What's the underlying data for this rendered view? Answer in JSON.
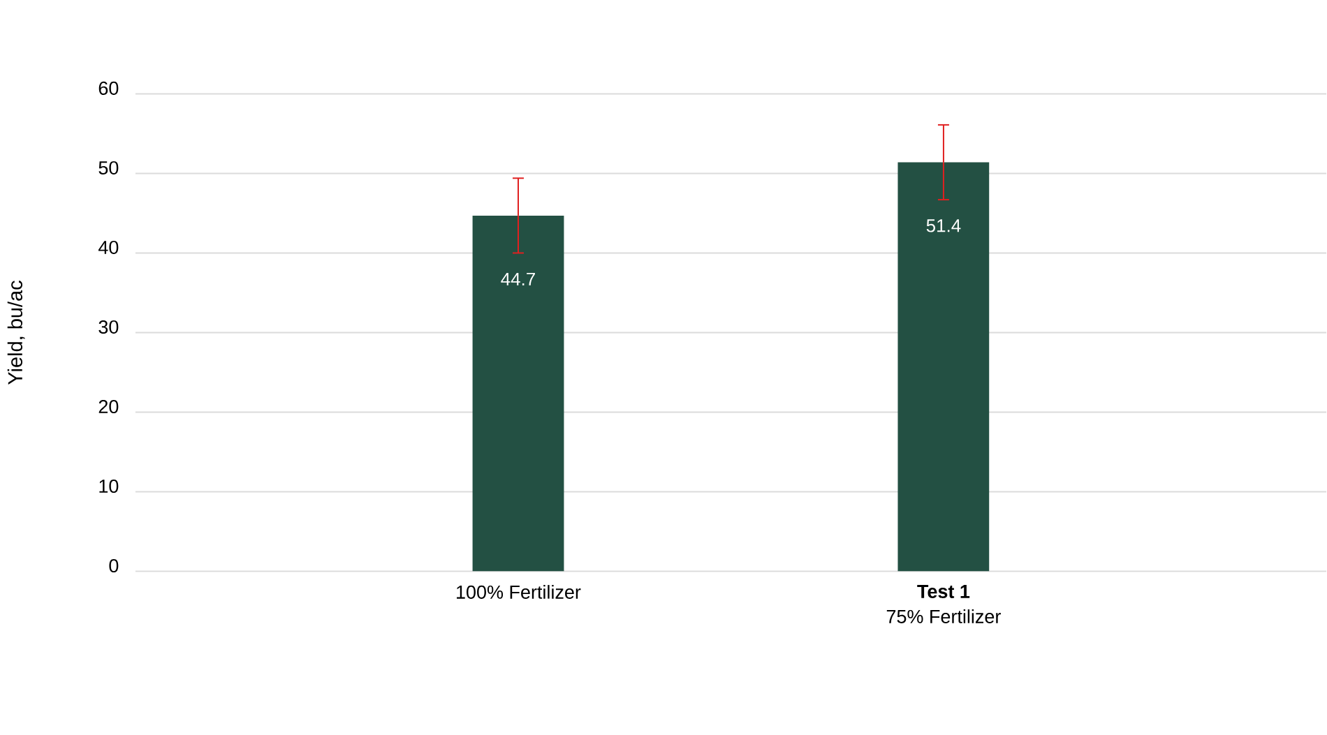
{
  "chart_data": {
    "type": "bar",
    "ylabel": "Yield, bu/ac",
    "categories": [
      "100% Fertilizer",
      "**Test 1**\n75% Fertilizer"
    ],
    "values": [
      44.7,
      51.4
    ],
    "errors": [
      4.7,
      4.7
    ],
    "color": "#235043",
    "ylim": [
      0,
      60
    ],
    "yticks": [
      0,
      10,
      20,
      30,
      40,
      50,
      60
    ],
    "grid": "y",
    "data_labels": true
  }
}
